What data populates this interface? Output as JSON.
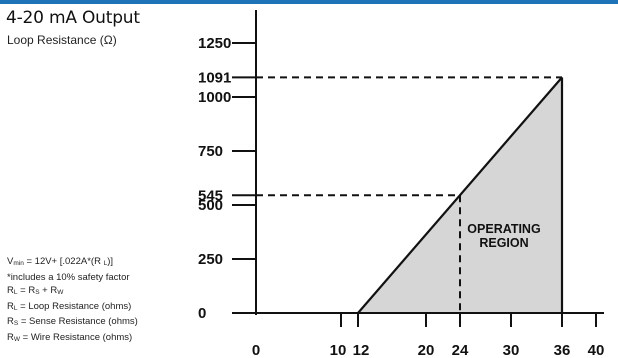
{
  "header": {
    "accent_color": "#1f74b8"
  },
  "title": "4-20 mA Output",
  "subtitle": "Loop Resistance (Ω)",
  "notes": [
    {
      "main": "V",
      "sub": "min",
      "rest": " = 12V+ [.022A*(R ",
      "sub2": "L",
      "rest2": ")]"
    },
    {
      "main": "*includes a 10% safety factor"
    },
    {
      "main": "R",
      "sub": "L",
      "rest": " = R",
      "sub2": "S",
      "rest2": " + R",
      "sub3": "W"
    },
    {
      "main": "R",
      "sub": "L",
      "rest": " = Loop Resistance (ohms)"
    },
    {
      "main": "R",
      "sub": "S",
      "rest": " = Sense Resistance (ohms)"
    },
    {
      "main": "R",
      "sub": "W",
      "rest": " = Wire Resistance (ohms)"
    }
  ],
  "chart_data": {
    "type": "area",
    "x_ticks": [
      0,
      10,
      12,
      20,
      24,
      30,
      36,
      40
    ],
    "y_ticks": [
      0,
      250,
      500,
      545,
      750,
      1000,
      1091,
      1250
    ],
    "xlim": [
      0,
      40
    ],
    "ylim": [
      0,
      1250
    ],
    "operating_region": {
      "points": [
        [
          12,
          0
        ],
        [
          36,
          1091
        ],
        [
          36,
          0
        ]
      ],
      "fill_color": "#d6d6d6",
      "label_lines": [
        "OPERATING",
        "REGION"
      ]
    },
    "reference_lines": [
      {
        "x": 24,
        "y": 545
      },
      {
        "x": 36,
        "y": 1091
      }
    ],
    "grid": false
  }
}
